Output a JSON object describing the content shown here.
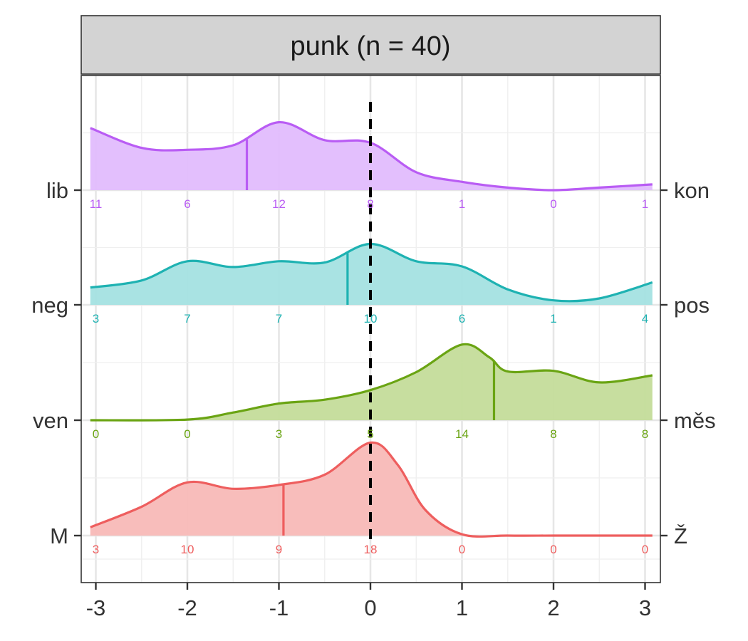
{
  "chart_data": {
    "type": "ridgeline-density",
    "title": "punk (n = 40)",
    "x_ticks": [
      -3,
      -2,
      -1,
      0,
      1,
      2,
      3
    ],
    "x_tick_labels": [
      "-3",
      "-2",
      "-1",
      "0",
      "1",
      "2",
      "3"
    ],
    "xlim": [
      -3,
      3
    ],
    "reference_line_x": 0,
    "grid": true,
    "series": [
      {
        "left_label": "M",
        "right_label": "Ž",
        "color": "#ee5e5e",
        "fill": "#f8b9b7",
        "median": -0.95,
        "counts": [
          3,
          10,
          9,
          18,
          0,
          0,
          0
        ],
        "density": [
          [
            -3.0,
            0.13
          ],
          [
            -2.5,
            0.45
          ],
          [
            -2.0,
            0.83
          ],
          [
            -1.5,
            0.73
          ],
          [
            -1.0,
            0.79
          ],
          [
            -0.5,
            0.95
          ],
          [
            0.0,
            1.45
          ],
          [
            0.3,
            1.1
          ],
          [
            0.6,
            0.4
          ],
          [
            1.0,
            0.02
          ],
          [
            1.5,
            0.0
          ],
          [
            2.0,
            0.0
          ],
          [
            2.5,
            0.0
          ],
          [
            3.0,
            0.0
          ]
        ]
      },
      {
        "left_label": "ven",
        "right_label": "měs",
        "color": "#6aa413",
        "fill": "#c4dc9a",
        "median": 1.35,
        "counts": [
          0,
          0,
          3,
          5,
          14,
          8,
          8
        ],
        "density": [
          [
            -3.0,
            0.0
          ],
          [
            -2.0,
            0.01
          ],
          [
            -1.5,
            0.12
          ],
          [
            -1.0,
            0.26
          ],
          [
            -0.5,
            0.32
          ],
          [
            0.0,
            0.47
          ],
          [
            0.5,
            0.75
          ],
          [
            1.0,
            1.18
          ],
          [
            1.3,
            0.98
          ],
          [
            1.5,
            0.76
          ],
          [
            2.0,
            0.77
          ],
          [
            2.5,
            0.59
          ],
          [
            3.0,
            0.7
          ]
        ]
      },
      {
        "left_label": "neg",
        "right_label": "pos",
        "color": "#1eb2b2",
        "fill": "#a4e1e1",
        "median": -0.25,
        "counts": [
          3,
          7,
          7,
          10,
          6,
          1,
          4
        ],
        "density": [
          [
            -3.0,
            0.27
          ],
          [
            -2.5,
            0.38
          ],
          [
            -2.0,
            0.68
          ],
          [
            -1.5,
            0.59
          ],
          [
            -1.0,
            0.68
          ],
          [
            -0.5,
            0.66
          ],
          [
            0.0,
            0.95
          ],
          [
            0.5,
            0.68
          ],
          [
            1.0,
            0.6
          ],
          [
            1.5,
            0.24
          ],
          [
            2.0,
            0.07
          ],
          [
            2.5,
            0.1
          ],
          [
            3.0,
            0.35
          ]
        ]
      },
      {
        "left_label": "lib",
        "right_label": "kon",
        "color": "#b95cf4",
        "fill": "#e2bcfd",
        "median": -1.35,
        "counts": [
          11,
          6,
          12,
          8,
          1,
          0,
          1
        ],
        "density": [
          [
            -3.0,
            0.97
          ],
          [
            -2.5,
            0.66
          ],
          [
            -2.0,
            0.63
          ],
          [
            -1.5,
            0.7
          ],
          [
            -1.0,
            1.06
          ],
          [
            -0.5,
            0.78
          ],
          [
            0.0,
            0.74
          ],
          [
            0.5,
            0.28
          ],
          [
            1.0,
            0.13
          ],
          [
            1.5,
            0.04
          ],
          [
            2.0,
            0.0
          ],
          [
            2.5,
            0.04
          ],
          [
            3.0,
            0.09
          ]
        ]
      }
    ],
    "colors": {
      "strip_fill": "#d3d3d3",
      "panel_border": "#333333",
      "grid_major": "#e6e6e6",
      "grid_minor": "#efefef",
      "reference_line": "#000000"
    }
  }
}
